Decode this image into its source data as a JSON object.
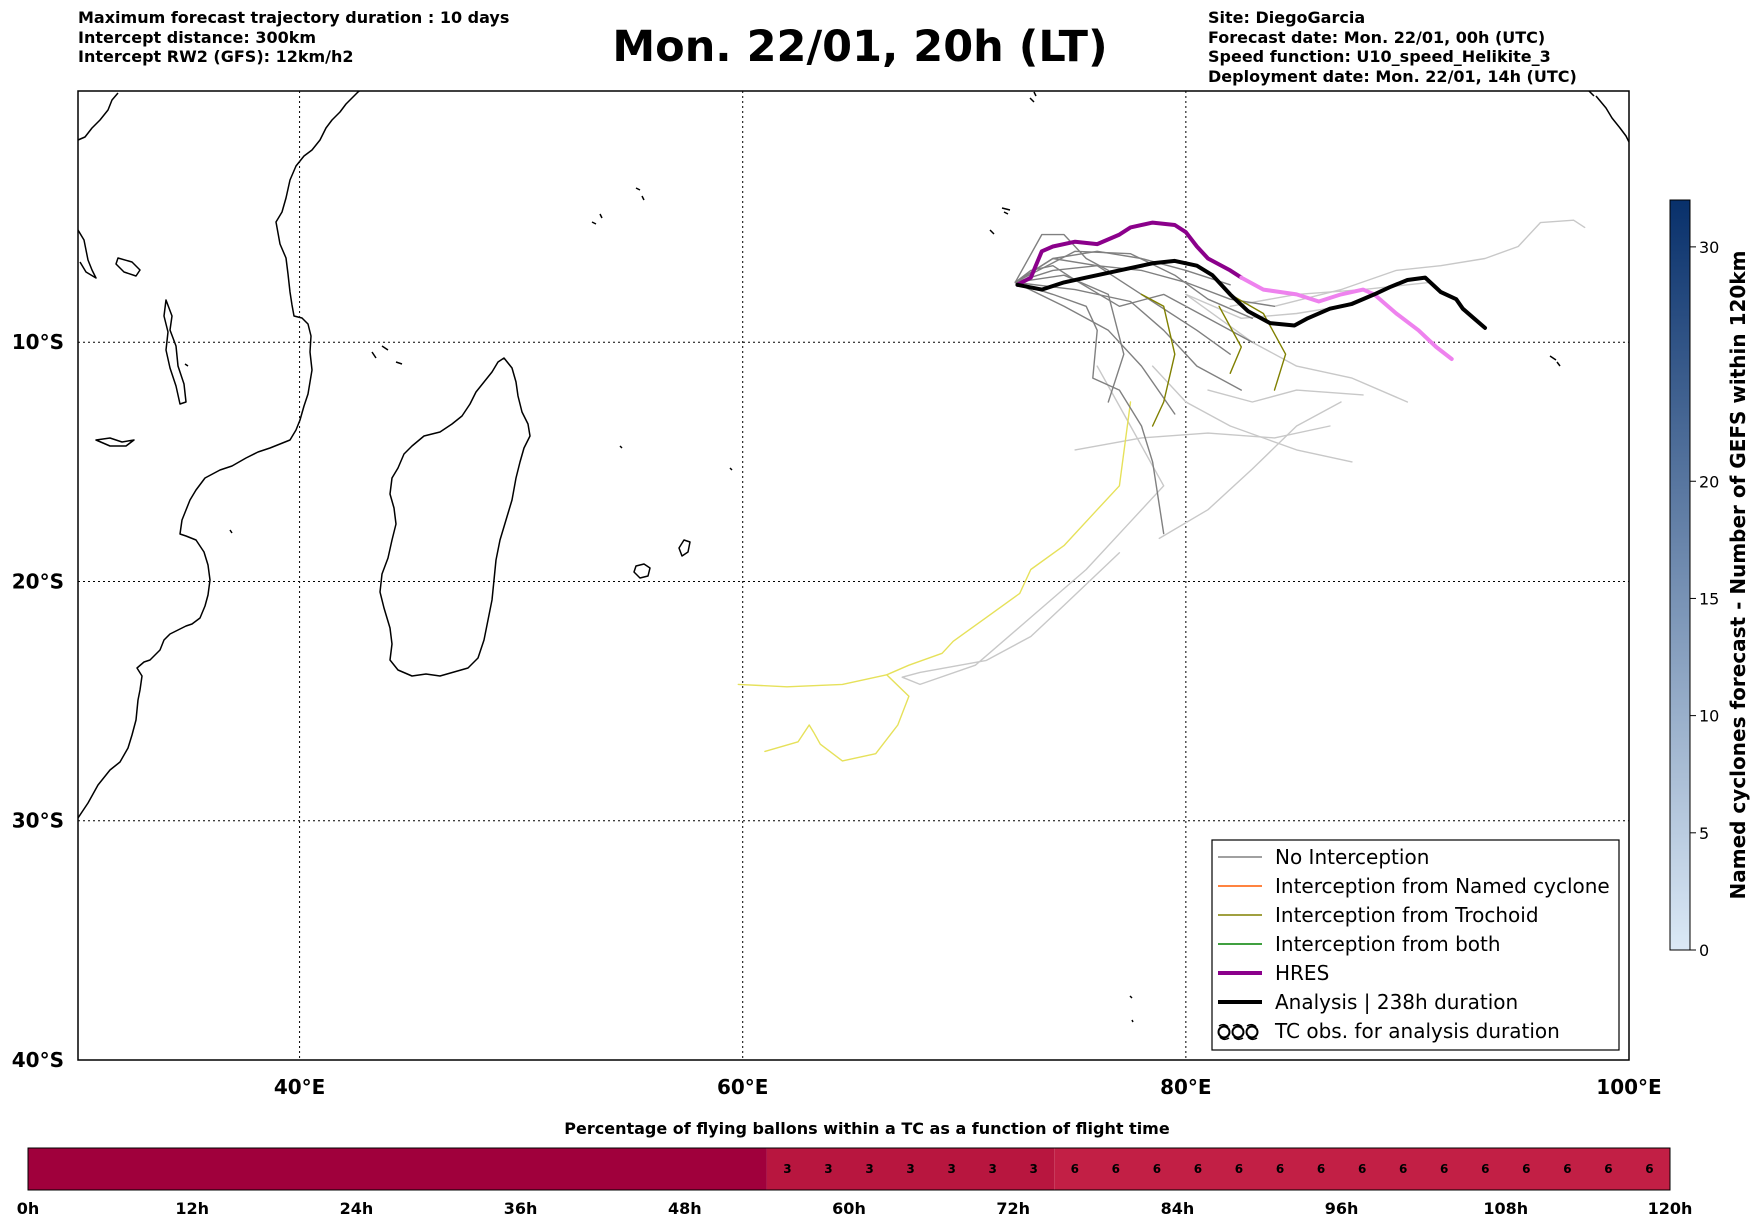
{
  "header_left": [
    "Maximum forecast trajectory duration : 10 days",
    "Intercept distance: 300km",
    "Intercept RW2 (GFS):  12km/h2"
  ],
  "title": "Mon. 22/01, 20h (LT)",
  "header_right": [
    "Site: DiegoGarcia",
    "Forecast date: Mon. 22/01, 00h (UTC)",
    "Speed function: U10_speed_Helikite_3",
    "Deployment date: Mon. 22/01, 14h (UTC)"
  ],
  "map": {
    "lon_range": [
      30,
      100
    ],
    "lat_range": [
      -40,
      0.5
    ],
    "lon_ticks": [
      {
        "v": 40,
        "label": "40°E"
      },
      {
        "v": 60,
        "label": "60°E"
      },
      {
        "v": 80,
        "label": "80°E"
      },
      {
        "v": 100,
        "label": "100°E"
      }
    ],
    "lat_ticks": [
      {
        "v": -10,
        "label": "10°S"
      },
      {
        "v": -20,
        "label": "20°S"
      },
      {
        "v": -30,
        "label": "30°S"
      },
      {
        "v": -40,
        "label": "40°S"
      }
    ],
    "grid": true,
    "colors": {
      "no_interception": "#808080",
      "no_interception_light": "#c8c8c8",
      "named_cyclone": "#ff5a00",
      "trochoid": "#808000",
      "trochoid_light": "#e6e15a",
      "both": "#008000",
      "hres": "#8b008b",
      "hres_tail": "#ee82ee",
      "analysis": "#000000"
    },
    "trajectories": {
      "analysis": [
        [
          72.4,
          -7.6
        ],
        [
          73.5,
          -7.8
        ],
        [
          74.5,
          -7.5
        ],
        [
          75.5,
          -7.3
        ],
        [
          76.5,
          -7.1
        ],
        [
          77.5,
          -6.9
        ],
        [
          78.5,
          -6.7
        ],
        [
          79.5,
          -6.6
        ],
        [
          80.5,
          -6.8
        ],
        [
          81.2,
          -7.2
        ],
        [
          82.0,
          -8.0
        ],
        [
          82.8,
          -8.7
        ],
        [
          83.8,
          -9.2
        ],
        [
          84.9,
          -9.3
        ],
        [
          85.5,
          -9.0
        ],
        [
          86.5,
          -8.6
        ],
        [
          87.5,
          -8.4
        ],
        [
          88.5,
          -8.0
        ],
        [
          89.2,
          -7.7
        ],
        [
          90.0,
          -7.4
        ],
        [
          90.8,
          -7.3
        ],
        [
          91.5,
          -7.9
        ],
        [
          92.2,
          -8.2
        ],
        [
          92.5,
          -8.6
        ],
        [
          93.0,
          -9.0
        ],
        [
          93.5,
          -9.4
        ]
      ],
      "hres": [
        [
          72.4,
          -7.6
        ],
        [
          73.0,
          -7.3
        ],
        [
          73.5,
          -6.2
        ],
        [
          74.0,
          -6.0
        ],
        [
          75.0,
          -5.8
        ],
        [
          76.0,
          -5.9
        ],
        [
          77.0,
          -5.5
        ],
        [
          77.5,
          -5.2
        ],
        [
          78.5,
          -5.0
        ],
        [
          79.5,
          -5.1
        ],
        [
          80.0,
          -5.4
        ],
        [
          80.5,
          -6.0
        ],
        [
          81.0,
          -6.5
        ],
        [
          82.0,
          -7.0
        ],
        [
          82.5,
          -7.3
        ]
      ],
      "hres_tail": [
        [
          82.5,
          -7.3
        ],
        [
          83.5,
          -7.8
        ],
        [
          85.0,
          -8.0
        ],
        [
          86.0,
          -8.3
        ],
        [
          87.0,
          -8.0
        ],
        [
          88.0,
          -7.8
        ],
        [
          88.5,
          -8.0
        ],
        [
          89.5,
          -8.8
        ],
        [
          90.5,
          -9.5
        ],
        [
          91.3,
          -10.2
        ],
        [
          92.0,
          -10.7
        ]
      ],
      "no_interception": [
        [
          [
            72.3,
            -7.5
          ],
          [
            74.0,
            -7.0
          ],
          [
            76.0,
            -6.8
          ],
          [
            78.0,
            -7.0
          ],
          [
            80.0,
            -7.5
          ],
          [
            82.0,
            -8.2
          ],
          [
            84.0,
            -8.5
          ]
        ],
        [
          [
            72.3,
            -7.5
          ],
          [
            74.0,
            -6.5
          ],
          [
            76.0,
            -6.2
          ],
          [
            78.0,
            -6.5
          ],
          [
            80.0,
            -7.0
          ],
          [
            82.0,
            -7.6
          ]
        ],
        [
          [
            72.3,
            -7.5
          ],
          [
            73.5,
            -5.5
          ],
          [
            74.5,
            -5.5
          ],
          [
            75.5,
            -6.5
          ],
          [
            76.5,
            -7.0
          ]
        ],
        [
          [
            72.3,
            -7.5
          ],
          [
            74.0,
            -8.0
          ],
          [
            75.5,
            -8.5
          ],
          [
            76.0,
            -9.5
          ],
          [
            75.8,
            -11.5
          ],
          [
            77.0,
            -12.0
          ],
          [
            78.0,
            -13.5
          ],
          [
            78.5,
            -15.0
          ],
          [
            79.0,
            -18.0
          ]
        ],
        [
          [
            72.3,
            -7.5
          ],
          [
            75.0,
            -7.8
          ],
          [
            77.5,
            -8.3
          ],
          [
            79.0,
            -9.5
          ],
          [
            80.5,
            -11.0
          ],
          [
            82.5,
            -12.0
          ]
        ],
        [
          [
            72.3,
            -7.5
          ],
          [
            74.5,
            -8.5
          ],
          [
            76.5,
            -9.5
          ],
          [
            78.0,
            -11.0
          ],
          [
            79.5,
            -13.0
          ]
        ],
        [
          [
            72.3,
            -7.5
          ],
          [
            73.0,
            -7.0
          ],
          [
            74.0,
            -6.8
          ],
          [
            75.0,
            -7.4
          ],
          [
            77.0,
            -8.5
          ],
          [
            79.0,
            -8.0
          ],
          [
            81.0,
            -9.0
          ],
          [
            83.0,
            -10.0
          ]
        ],
        [
          [
            72.3,
            -7.5
          ],
          [
            74.0,
            -6.5
          ],
          [
            76.0,
            -6.8
          ],
          [
            78.0,
            -8.0
          ],
          [
            80.5,
            -9.5
          ],
          [
            82.0,
            -10.5
          ]
        ],
        [
          [
            72.3,
            -7.5
          ],
          [
            75.0,
            -6.2
          ],
          [
            77.5,
            -6.3
          ],
          [
            79.5,
            -7.2
          ],
          [
            81.0,
            -8.2
          ],
          [
            83.0,
            -9.0
          ]
        ],
        [
          [
            72.3,
            -7.5
          ],
          [
            74.5,
            -7.2
          ],
          [
            76.5,
            -8.0
          ],
          [
            77.2,
            -10.5
          ],
          [
            76.5,
            -12.5
          ]
        ]
      ],
      "no_interception_light": [
        [
          [
            80.0,
            -8.0
          ],
          [
            82.5,
            -9.0
          ],
          [
            85.0,
            -8.8
          ],
          [
            87.0,
            -8.5
          ],
          [
            89.0,
            -7.8
          ]
        ],
        [
          [
            80.0,
            -8.0
          ],
          [
            83.0,
            -10.0
          ],
          [
            85.0,
            -11.0
          ],
          [
            87.5,
            -11.5
          ],
          [
            90.0,
            -12.5
          ]
        ],
        [
          [
            82.0,
            -8.5
          ],
          [
            85.0,
            -8.0
          ],
          [
            88.0,
            -7.8
          ],
          [
            91.0,
            -7.5
          ]
        ],
        [
          [
            84.0,
            -8.5
          ],
          [
            87.0,
            -7.8
          ],
          [
            89.5,
            -7.0
          ],
          [
            91.5,
            -6.8
          ],
          [
            93.5,
            -6.5
          ],
          [
            95.0,
            -6.0
          ],
          [
            96.0,
            -5.0
          ],
          [
            97.5,
            -4.9
          ],
          [
            98.0,
            -5.2
          ]
        ],
        [
          [
            78.5,
            -11.0
          ],
          [
            80.0,
            -12.5
          ],
          [
            82.0,
            -13.5
          ],
          [
            85.0,
            -14.5
          ],
          [
            87.5,
            -15.0
          ]
        ],
        [
          [
            76.0,
            -11.0
          ],
          [
            77.5,
            -13.5
          ],
          [
            79.0,
            -16.0
          ],
          [
            77.5,
            -17.5
          ],
          [
            75.5,
            -19.5
          ],
          [
            73.0,
            -21.5
          ],
          [
            70.5,
            -23.5
          ],
          [
            68.0,
            -24.3
          ],
          [
            67.2,
            -24.0
          ],
          [
            68.0,
            -23.8
          ],
          [
            71.0,
            -23.3
          ],
          [
            73.0,
            -22.3
          ],
          [
            74.5,
            -21.0
          ],
          [
            77.0,
            -18.8
          ]
        ],
        [
          [
            75.0,
            -14.5
          ],
          [
            78.0,
            -14.0
          ],
          [
            81.0,
            -13.8
          ],
          [
            84.0,
            -14.0
          ],
          [
            86.5,
            -13.5
          ]
        ],
        [
          [
            81.0,
            -12.0
          ],
          [
            83.0,
            -12.5
          ],
          [
            85.0,
            -12.0
          ],
          [
            88.0,
            -12.2
          ]
        ],
        [
          [
            78.8,
            -18.2
          ],
          [
            81.0,
            -17.0
          ],
          [
            83.0,
            -15.3
          ],
          [
            85.0,
            -13.5
          ],
          [
            87.0,
            -12.5
          ]
        ]
      ],
      "trochoid": [
        [
          [
            78.0,
            -8.0
          ],
          [
            79.0,
            -8.5
          ],
          [
            79.5,
            -10.5
          ],
          [
            79.0,
            -12.5
          ],
          [
            78.5,
            -13.5
          ]
        ],
        [
          [
            82.0,
            -8.0
          ],
          [
            83.5,
            -8.8
          ],
          [
            84.5,
            -10.5
          ],
          [
            84.0,
            -12.0
          ]
        ],
        [
          [
            81.5,
            -8.5
          ],
          [
            82.5,
            -10.2
          ],
          [
            82.0,
            -11.3
          ]
        ]
      ],
      "trochoid_light": [
        [
          [
            77.5,
            -12.5
          ],
          [
            77.0,
            -16.0
          ],
          [
            76.0,
            -17.0
          ],
          [
            74.5,
            -18.5
          ],
          [
            73.0,
            -19.5
          ],
          [
            72.5,
            -20.5
          ],
          [
            71.0,
            -21.5
          ],
          [
            69.5,
            -22.5
          ],
          [
            69.0,
            -23.0
          ],
          [
            67.5,
            -23.5
          ],
          [
            66.5,
            -23.9
          ],
          [
            64.5,
            -24.3
          ],
          [
            62.0,
            -24.4
          ],
          [
            59.8,
            -24.3
          ]
        ],
        [
          [
            66.5,
            -23.9
          ],
          [
            67.5,
            -24.8
          ],
          [
            67.0,
            -26.0
          ],
          [
            66.0,
            -27.2
          ],
          [
            64.5,
            -27.5
          ],
          [
            63.5,
            -26.8
          ],
          [
            63.2,
            -26.3
          ],
          [
            63.0,
            -26.0
          ],
          [
            62.5,
            -26.7
          ],
          [
            61.0,
            -27.1
          ]
        ]
      ]
    }
  },
  "legend": [
    {
      "label": "No Interception",
      "style": "no_interception"
    },
    {
      "label": "Interception from Named cyclone",
      "style": "named_cyclone"
    },
    {
      "label": "Interception from Trochoid",
      "style": "trochoid"
    },
    {
      "label": "Interception from both",
      "style": "both"
    },
    {
      "label": "HRES",
      "style": "hres"
    },
    {
      "label": "Analysis | 238h duration",
      "style": "analysis"
    },
    {
      "label": "TC obs. for analysis duration",
      "style": "tc_obs"
    }
  ],
  "colorbar": {
    "label": "Named cyclones forecast - Number of GEFS within 120km",
    "min": 0,
    "max": 32,
    "ticks": [
      0,
      5,
      10,
      15,
      20,
      30
    ],
    "color_low": "#dbe9f6",
    "color_high": "#08306b"
  },
  "timebar": {
    "title": "Percentage of flying ballons within a TC as a function of flight time",
    "max_hours": 120,
    "ticks": [
      {
        "h": 0,
        "label": "0h"
      },
      {
        "h": 12,
        "label": "12h"
      },
      {
        "h": 24,
        "label": "24h"
      },
      {
        "h": 36,
        "label": "36h"
      },
      {
        "h": 48,
        "label": "48h"
      },
      {
        "h": 60,
        "label": "60h"
      },
      {
        "h": 72,
        "label": "72h"
      },
      {
        "h": 84,
        "label": "84h"
      },
      {
        "h": 96,
        "label": "96h"
      },
      {
        "h": 108,
        "label": "108h"
      },
      {
        "h": 120,
        "label": "120h"
      }
    ],
    "segments": [
      {
        "start_h": 0,
        "end_h": 54,
        "value": null,
        "color": "#a0003c"
      },
      {
        "start_h": 54,
        "end_h": 75,
        "value": 3,
        "color": "#b8163f"
      },
      {
        "start_h": 75,
        "end_h": 120,
        "value": 6,
        "color": "#c21f45"
      }
    ],
    "cells": [
      {
        "h": 55.5,
        "label": "3"
      },
      {
        "h": 58.5,
        "label": "3"
      },
      {
        "h": 61.5,
        "label": "3"
      },
      {
        "h": 64.5,
        "label": "3"
      },
      {
        "h": 67.5,
        "label": "3"
      },
      {
        "h": 70.5,
        "label": "3"
      },
      {
        "h": 73.5,
        "label": "3"
      },
      {
        "h": 76.5,
        "label": "6"
      },
      {
        "h": 79.5,
        "label": "6"
      },
      {
        "h": 82.5,
        "label": "6"
      },
      {
        "h": 85.5,
        "label": "6"
      },
      {
        "h": 88.5,
        "label": "6"
      },
      {
        "h": 91.5,
        "label": "6"
      },
      {
        "h": 94.5,
        "label": "6"
      },
      {
        "h": 97.5,
        "label": "6"
      },
      {
        "h": 100.5,
        "label": "6"
      },
      {
        "h": 103.5,
        "label": "6"
      },
      {
        "h": 106.5,
        "label": "6"
      },
      {
        "h": 109.5,
        "label": "6"
      },
      {
        "h": 112.5,
        "label": "6"
      },
      {
        "h": 115.5,
        "label": "6"
      },
      {
        "h": 118.5,
        "label": "6"
      }
    ]
  }
}
